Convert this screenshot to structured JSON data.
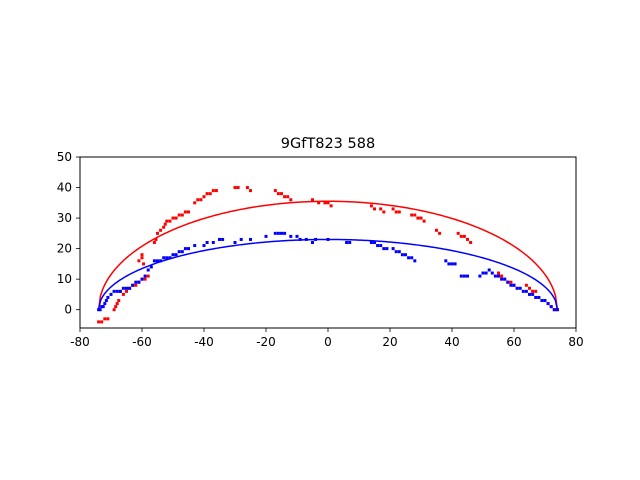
{
  "chart_data": {
    "type": "scatter",
    "title": "9GfT823 588",
    "xlabel": "",
    "ylabel": "",
    "xlim": [
      -80,
      80
    ],
    "ylim": [
      -6,
      50
    ],
    "x_ticks": [
      -80,
      -60,
      -40,
      -20,
      0,
      20,
      40,
      60,
      80
    ],
    "y_ticks": [
      0,
      10,
      20,
      30,
      40,
      50
    ],
    "grid": false,
    "colors": {
      "red": "#ff0000",
      "blue": "#0000ff"
    },
    "curves": [
      {
        "color": "#ff0000",
        "shape": "semi-ellipse",
        "x_range": [
          -74,
          74
        ],
        "peak_y": 35.5
      },
      {
        "color": "#0000ff",
        "shape": "semi-ellipse",
        "x_range": [
          -74,
          74
        ],
        "peak_y": 23
      }
    ],
    "series": [
      {
        "color": "#ff0000",
        "points": [
          [
            -74,
            -4
          ],
          [
            -73,
            -4
          ],
          [
            -72,
            -3
          ],
          [
            -71,
            -3
          ],
          [
            -69,
            0
          ],
          [
            -68.5,
            1
          ],
          [
            -68,
            2
          ],
          [
            -67.5,
            3
          ],
          [
            -67,
            6
          ],
          [
            -66,
            5
          ],
          [
            -65,
            6
          ],
          [
            -64,
            7
          ],
          [
            -63,
            8
          ],
          [
            -62,
            8
          ],
          [
            -61,
            9
          ],
          [
            -60,
            10
          ],
          [
            -59.5,
            15
          ],
          [
            -61,
            16
          ],
          [
            -60,
            17
          ],
          [
            -60,
            18
          ],
          [
            -59,
            10
          ],
          [
            -58,
            11
          ],
          [
            -56,
            22
          ],
          [
            -55.5,
            23
          ],
          [
            -55,
            25
          ],
          [
            -54,
            26
          ],
          [
            -53,
            27
          ],
          [
            -52.5,
            28
          ],
          [
            -52,
            29
          ],
          [
            -51,
            29
          ],
          [
            -50,
            30
          ],
          [
            -49,
            30
          ],
          [
            -48,
            31
          ],
          [
            -47,
            31
          ],
          [
            -46,
            32
          ],
          [
            -45,
            32
          ],
          [
            -43,
            35
          ],
          [
            -42,
            36
          ],
          [
            -41,
            36
          ],
          [
            -40,
            37
          ],
          [
            -39,
            38
          ],
          [
            -38,
            38
          ],
          [
            -37,
            39
          ],
          [
            -36,
            39
          ],
          [
            -30,
            40
          ],
          [
            -29,
            40
          ],
          [
            -26,
            40
          ],
          [
            -25,
            39
          ],
          [
            -17,
            39
          ],
          [
            -16,
            38
          ],
          [
            -15,
            38
          ],
          [
            -14,
            37
          ],
          [
            -13,
            37
          ],
          [
            -12,
            36
          ],
          [
            -5,
            36
          ],
          [
            -3,
            35
          ],
          [
            -1,
            35
          ],
          [
            0,
            35
          ],
          [
            1,
            34
          ],
          [
            14,
            34
          ],
          [
            15,
            33
          ],
          [
            17,
            33
          ],
          [
            18,
            32
          ],
          [
            21,
            33
          ],
          [
            22,
            32
          ],
          [
            23,
            32
          ],
          [
            27,
            31
          ],
          [
            28,
            31
          ],
          [
            29,
            30
          ],
          [
            30,
            30
          ],
          [
            31,
            29
          ],
          [
            35,
            26
          ],
          [
            36,
            25
          ],
          [
            42,
            25
          ],
          [
            43,
            24
          ],
          [
            44,
            24
          ],
          [
            45,
            23
          ],
          [
            46,
            22
          ],
          [
            55,
            12
          ],
          [
            56,
            11
          ],
          [
            57,
            10
          ],
          [
            58,
            9
          ],
          [
            59,
            9
          ],
          [
            60,
            8
          ],
          [
            64,
            8
          ],
          [
            65,
            7
          ],
          [
            66,
            6
          ],
          [
            67,
            6
          ],
          [
            68,
            4
          ],
          [
            70,
            3
          ],
          [
            71,
            2
          ],
          [
            72,
            1
          ],
          [
            73,
            0
          ],
          [
            74,
            0
          ]
        ]
      },
      {
        "color": "#0000ff",
        "points": [
          [
            -74,
            0
          ],
          [
            -73.5,
            0
          ],
          [
            -73,
            1
          ],
          [
            -72.5,
            1
          ],
          [
            -72,
            2
          ],
          [
            -71.5,
            3
          ],
          [
            -71,
            4
          ],
          [
            -70,
            5
          ],
          [
            -69,
            6
          ],
          [
            -68,
            6
          ],
          [
            -67,
            6
          ],
          [
            -66,
            7
          ],
          [
            -65,
            7
          ],
          [
            -64,
            7
          ],
          [
            -63,
            8
          ],
          [
            -62,
            9
          ],
          [
            -61,
            9
          ],
          [
            -60,
            10
          ],
          [
            -59,
            11
          ],
          [
            -58,
            13
          ],
          [
            -57,
            14
          ],
          [
            -56,
            16
          ],
          [
            -55,
            16
          ],
          [
            -54,
            16
          ],
          [
            -53,
            17
          ],
          [
            -52,
            17
          ],
          [
            -51,
            17
          ],
          [
            -50,
            18
          ],
          [
            -49,
            18
          ],
          [
            -48,
            19
          ],
          [
            -47,
            19
          ],
          [
            -46,
            20
          ],
          [
            -45,
            20
          ],
          [
            -43,
            21
          ],
          [
            -40,
            21
          ],
          [
            -39,
            22
          ],
          [
            -37,
            22
          ],
          [
            -35,
            23
          ],
          [
            -34,
            23
          ],
          [
            -30,
            22
          ],
          [
            -28,
            23
          ],
          [
            -25,
            23
          ],
          [
            -20,
            24
          ],
          [
            -17,
            25
          ],
          [
            -16,
            25
          ],
          [
            -15,
            25
          ],
          [
            -14,
            25
          ],
          [
            -12,
            24
          ],
          [
            -10,
            24
          ],
          [
            -9,
            23
          ],
          [
            -7,
            23
          ],
          [
            -5,
            22
          ],
          [
            -4,
            23
          ],
          [
            0,
            23
          ],
          [
            6,
            22
          ],
          [
            7,
            22
          ],
          [
            14,
            22
          ],
          [
            15,
            22
          ],
          [
            16,
            21
          ],
          [
            17,
            21
          ],
          [
            18,
            20
          ],
          [
            19,
            20
          ],
          [
            21,
            20
          ],
          [
            22,
            19
          ],
          [
            23,
            19
          ],
          [
            24,
            18
          ],
          [
            25,
            18
          ],
          [
            26,
            17
          ],
          [
            27,
            17
          ],
          [
            28,
            16
          ],
          [
            38,
            16
          ],
          [
            39,
            15
          ],
          [
            40,
            15
          ],
          [
            41,
            15
          ],
          [
            43,
            11
          ],
          [
            44,
            11
          ],
          [
            45,
            11
          ],
          [
            49,
            11
          ],
          [
            50,
            12
          ],
          [
            51,
            12
          ],
          [
            52,
            13
          ],
          [
            53,
            12
          ],
          [
            54,
            11
          ],
          [
            55,
            11
          ],
          [
            56,
            10
          ],
          [
            57,
            10
          ],
          [
            58,
            9
          ],
          [
            59,
            8
          ],
          [
            60,
            8
          ],
          [
            61,
            7
          ],
          [
            62,
            7
          ],
          [
            63,
            6
          ],
          [
            64,
            6
          ],
          [
            65,
            5
          ],
          [
            66,
            5
          ],
          [
            67,
            4
          ],
          [
            68,
            4
          ],
          [
            69,
            3
          ],
          [
            70,
            3
          ],
          [
            71,
            2
          ],
          [
            72,
            1
          ],
          [
            73,
            0
          ],
          [
            74,
            0
          ]
        ]
      }
    ]
  }
}
